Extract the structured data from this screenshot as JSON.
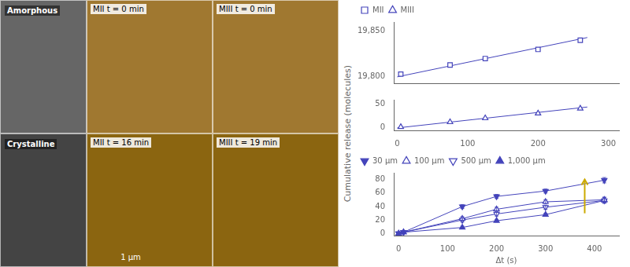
{
  "chart_data": [
    {
      "type": "scatter",
      "ylabel": "Cumulative release (molecules)",
      "color": "#4444bb",
      "grid": false,
      "legend": "upper left",
      "xlim": [
        -5,
        315
      ],
      "xticks": [
        0,
        100,
        200,
        300
      ],
      "ylim": [
        19793,
        19860
      ],
      "yticks": [
        {
          "value": 19800,
          "label": "19,800"
        },
        {
          "value": 19850,
          "label": "19,850"
        }
      ],
      "y2lim": [
        -5,
        58
      ],
      "y2ticks": [
        0,
        50
      ],
      "series": [
        {
          "name": "MII",
          "marker": "open-square",
          "x": [
            5,
            75,
            125,
            200,
            260
          ],
          "values": [
            19803,
            19813,
            19820,
            19830,
            19840
          ],
          "fit_x": [
            0,
            270
          ],
          "fit_y": [
            19800,
            19843
          ]
        },
        {
          "name": "MIII",
          "marker": "open-triangle-up",
          "axis": "y2",
          "x": [
            5,
            75,
            125,
            200,
            260
          ],
          "values": [
            2,
            12,
            20,
            30,
            40
          ],
          "fit_x": [
            0,
            270
          ],
          "fit_y": [
            0,
            43
          ]
        }
      ],
      "annotations": [
        {
          "text": "Amorphous",
          "color": "#666666"
        },
        {
          "text": "Crystalline",
          "color": "#444444"
        },
        {
          "text": "MII t = 0 min",
          "color": "#A07830"
        },
        {
          "text": "MIII t = 0 min",
          "color": "#A07830"
        },
        {
          "text": "MII t = 16 min",
          "color": "#8B6510"
        },
        {
          "text": "MIII t = 19 min",
          "color": "#8B6510"
        },
        {
          "text": "1 µm"
        }
      ]
    },
    {
      "type": "line",
      "xlabel": "Δt (s)",
      "color": "#4444bb",
      "grid": false,
      "legend": "upper left",
      "xlim": [
        -10,
        450
      ],
      "xticks": [
        0,
        100,
        200,
        300,
        400
      ],
      "ylim": [
        -3,
        90
      ],
      "yticks": [
        0,
        20,
        40,
        60,
        80
      ],
      "series": [
        {
          "name": "30 µm",
          "marker": "filled-triangle-down",
          "x": [
            0,
            10,
            130,
            200,
            300,
            420
          ],
          "values": [
            0,
            2,
            40,
            55,
            63,
            79
          ],
          "errors": [
            0,
            1,
            3,
            3,
            3,
            4
          ]
        },
        {
          "name": "100 µm",
          "marker": "open-triangle-up",
          "x": [
            0,
            10,
            130,
            200,
            300,
            420
          ],
          "values": [
            0,
            2,
            22,
            36,
            47,
            50
          ],
          "errors": [
            0,
            1,
            3,
            3,
            3,
            4
          ]
        },
        {
          "name": "500 µm",
          "marker": "open-triangle-down",
          "x": [
            0,
            10,
            130,
            200,
            300,
            420
          ],
          "values": [
            0,
            2,
            20,
            29,
            39,
            49
          ],
          "errors": [
            0,
            1,
            3,
            3,
            3,
            4
          ]
        },
        {
          "name": "1,000 µm",
          "marker": "filled-triangle-up",
          "x": [
            0,
            10,
            130,
            200,
            300,
            420
          ],
          "values": [
            0,
            2,
            9,
            19,
            28,
            49
          ],
          "errors": [
            0,
            1,
            2,
            2,
            2,
            4
          ]
        }
      ],
      "arrow": {
        "x": 380,
        "y_start": 30,
        "y_end": 80,
        "color": "#ccaa00"
      }
    }
  ]
}
